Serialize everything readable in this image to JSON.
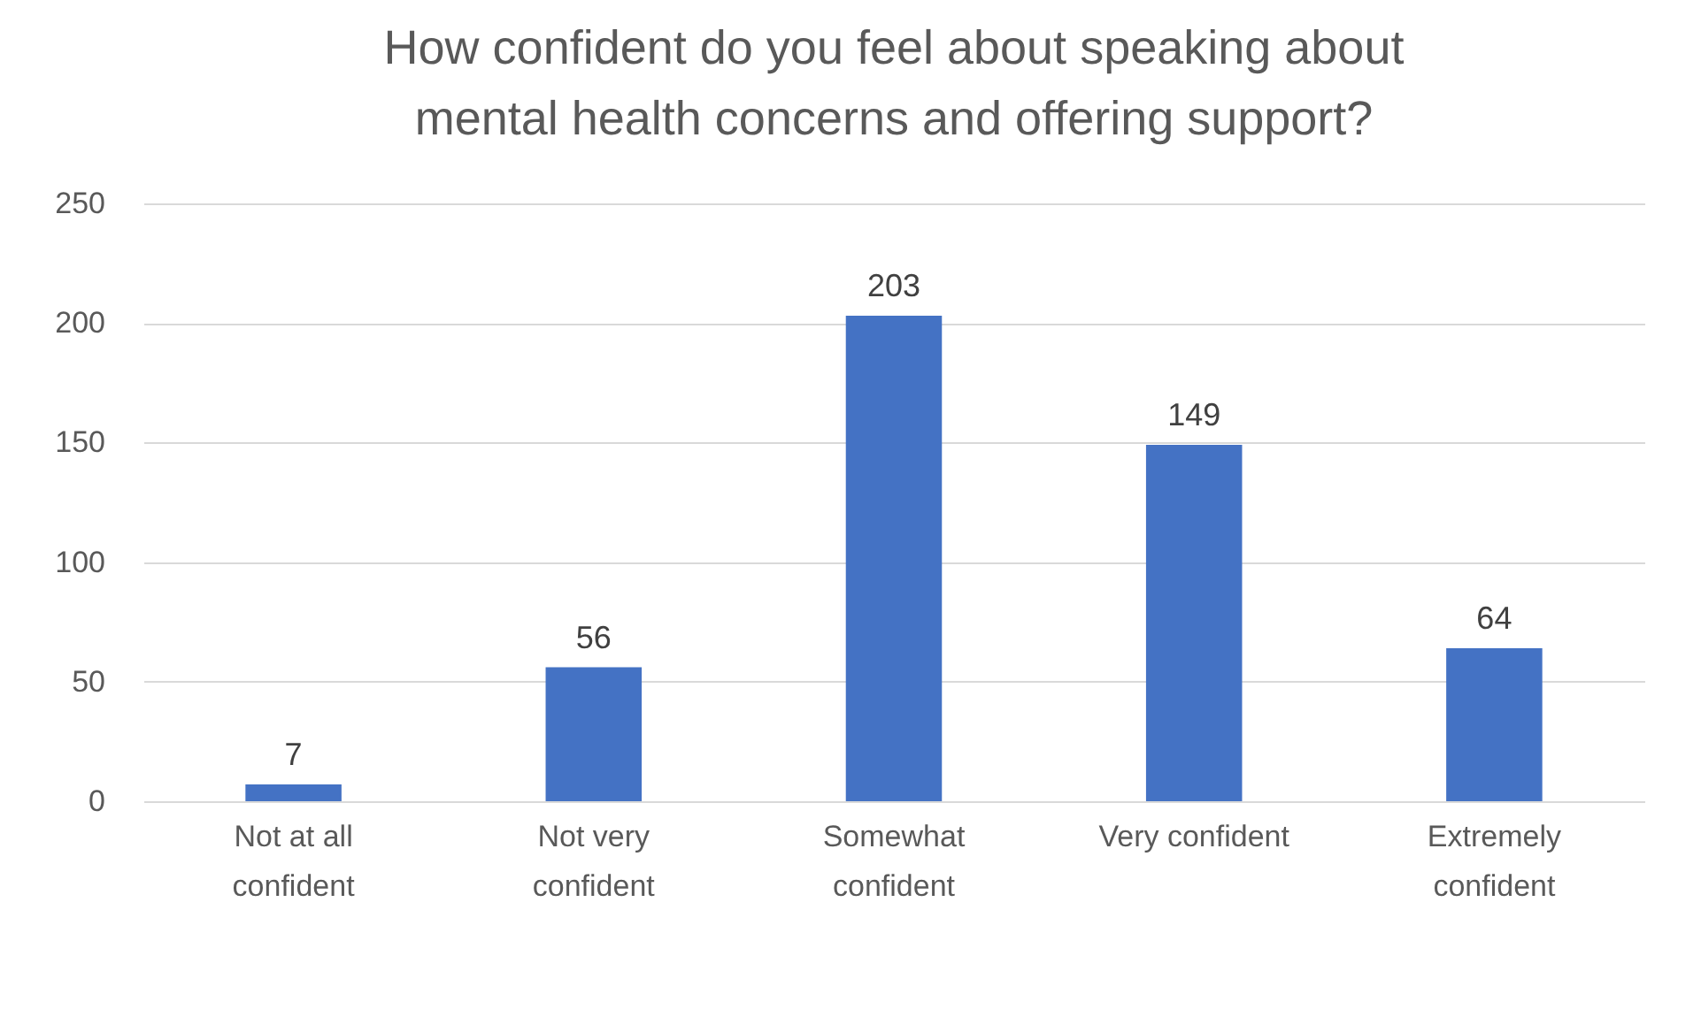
{
  "chart_data": {
    "type": "bar",
    "title": "How confident do you feel about speaking about mental health concerns and offering support?",
    "categories": [
      "Not at all confident",
      "Not very confident",
      "Somewhat confident",
      "Very confident",
      "Extremely confident"
    ],
    "values": [
      7,
      56,
      203,
      149,
      64
    ],
    "color": "#4472c4",
    "ylim": [
      0,
      250
    ],
    "yticks": [
      0,
      50,
      100,
      150,
      200,
      250
    ],
    "grid": "y",
    "data_labels": true
  }
}
